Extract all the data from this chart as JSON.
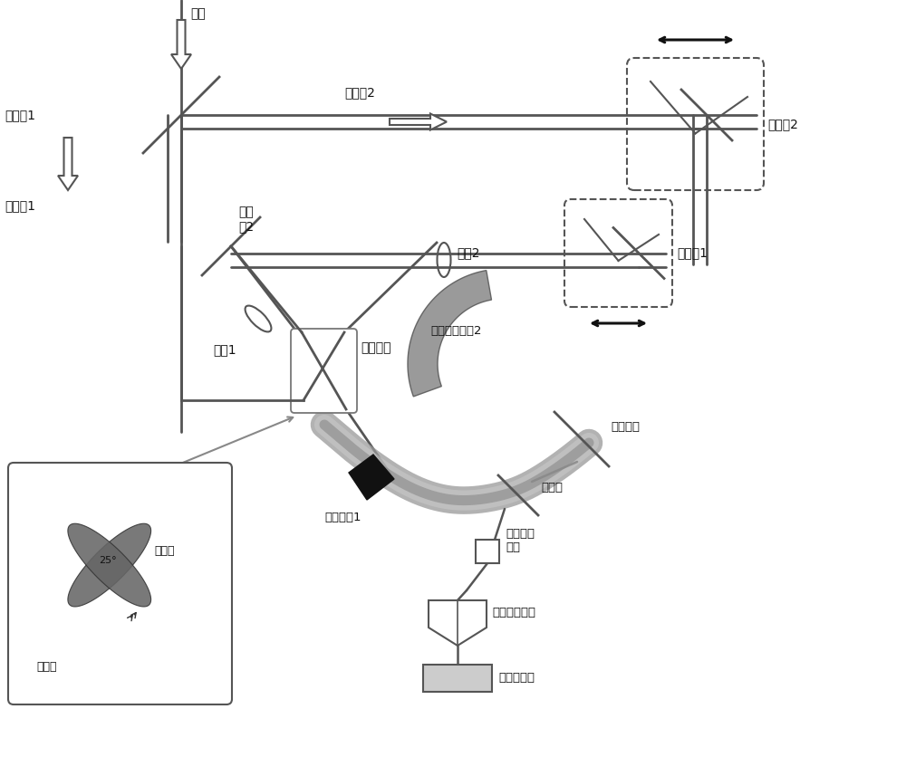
{
  "bg_color": "#ffffff",
  "line_color": "#555555",
  "dark_color": "#111111",
  "labels": {
    "laser": "激光",
    "pump1": "泵浦劉1",
    "pump2": "泵浦劉2",
    "bs1": "分束镱1",
    "bs2": "分束\n镱2",
    "lens1": "透镱1",
    "lens2": "透镱2",
    "plasma": "等离子体",
    "delay1": "延时熿1",
    "delay2": "延时熿2",
    "parabolic1": "抛物面镱1",
    "parabolic2": "硒片抛物面镱2",
    "ito": "氧化鉰锡",
    "znse": "碖化锌",
    "quarter": "四分之一\n玻片",
    "wollaston": "沃拉斯顿棱镜",
    "detector": "差分探测器",
    "thz1": "太赫兹",
    "thz2": "太赫兹",
    "angle": "25°"
  }
}
